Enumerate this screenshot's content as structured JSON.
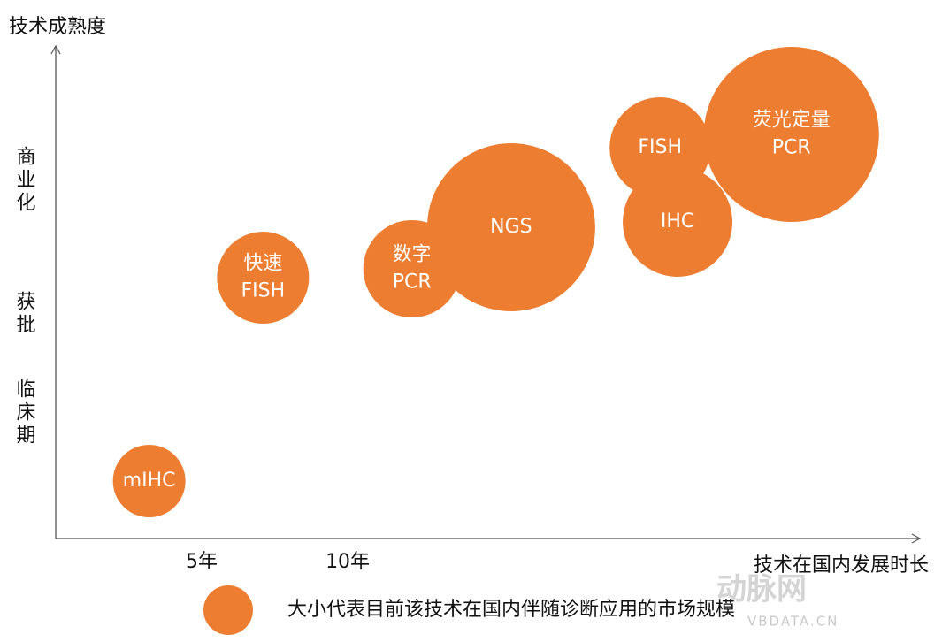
{
  "chart_data": {
    "type": "bubble",
    "y_label": "技术成熟度",
    "x_label": "技术在国内发展时长",
    "labels": [
      [
        "mIHC"
      ],
      [
        "快速",
        "FISH"
      ],
      [
        "数字",
        "PCR"
      ],
      [
        "NGS"
      ],
      [
        "FISH"
      ],
      [
        "IHC"
      ],
      [
        "荧光定量",
        "PCR"
      ]
    ],
    "x": [
      3.2,
      7.1,
      12.2,
      15.6,
      20.7,
      21.3,
      25.2
    ],
    "values": [
      0.65,
      2.95,
      3.05,
      3.52,
      4.42,
      3.58,
      4.57
    ],
    "sizes": [
      41,
      52,
      55,
      95,
      57,
      62,
      99
    ],
    "color": "#ED7D31",
    "xlim": [
      0,
      29.6
    ],
    "xticks": [
      {
        "value": 5,
        "label": "5年"
      },
      {
        "value": 10,
        "label": "10年"
      }
    ],
    "ylim": [
      0,
      5.57
    ],
    "yticks": [
      {
        "value": 1.42,
        "label": "临床期"
      },
      {
        "value": 2.54,
        "label": "获批"
      },
      {
        "value": 4.05,
        "label": "商业化"
      }
    ],
    "legend": "大小代表目前该技术在国内伴随诊断应用的市场规模",
    "watermark": [
      "动脉网",
      "VBDATA.CN"
    ]
  }
}
